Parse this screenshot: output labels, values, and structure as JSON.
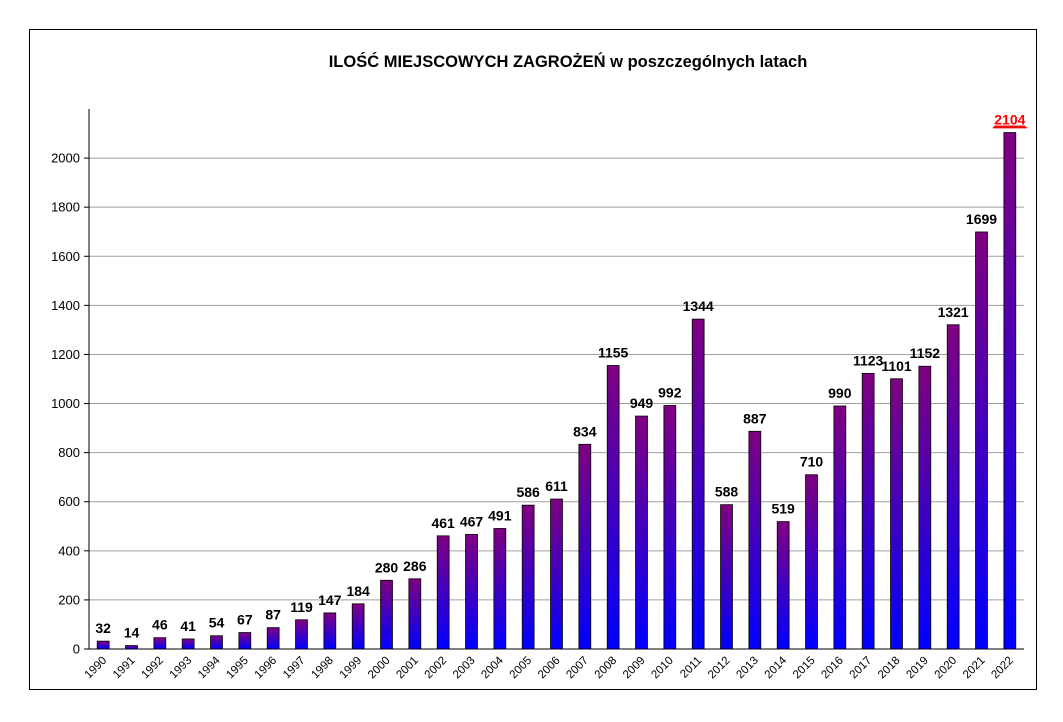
{
  "chart_data": {
    "type": "bar",
    "title": "ILOŚĆ MIEJSCOWYCH ZAGROŻEŃ w poszczególnych latach",
    "xlabel": "",
    "ylabel": "",
    "ylim": [
      0,
      2200
    ],
    "yticks": [
      "0",
      "200",
      "400",
      "600",
      "800",
      "1000",
      "1200",
      "1400",
      "1600",
      "1800",
      "2000"
    ],
    "grid": true,
    "categories": [
      "1990",
      "1991",
      "1992",
      "1993",
      "1994",
      "1995",
      "1996",
      "1997",
      "1998",
      "1999",
      "2000",
      "2001",
      "2002",
      "2003",
      "2004",
      "2005",
      "2006",
      "2007",
      "2008",
      "2009",
      "2010",
      "2011",
      "2012",
      "2013",
      "2014",
      "2015",
      "2016",
      "2017",
      "2018",
      "2019",
      "2020",
      "2021",
      "2022"
    ],
    "values": [
      32,
      14,
      46,
      41,
      54,
      67,
      87,
      119,
      147,
      184,
      280,
      286,
      461,
      467,
      491,
      586,
      611,
      834,
      1155,
      949,
      992,
      1344,
      588,
      887,
      519,
      710,
      990,
      1123,
      1101,
      1152,
      1321,
      1699,
      2104
    ],
    "labels": [
      "32",
      "14",
      "46",
      "41",
      "54",
      "67",
      "87",
      "119",
      "147",
      "184",
      "280",
      "286",
      "461",
      "467",
      "491",
      "586",
      "611",
      "834",
      "1155",
      "949",
      "992",
      "1344",
      "588",
      "887",
      "519",
      "710",
      "990",
      "1123",
      "1101",
      "1152",
      "1321",
      "1699",
      "2104"
    ],
    "highlight_index": 32,
    "colors": {
      "bar_top": "#800080",
      "bar_bottom": "#0000ff",
      "bar_stroke": "#000000",
      "grid": "#a0a0a0",
      "highlight_label": "#ff0000"
    }
  }
}
